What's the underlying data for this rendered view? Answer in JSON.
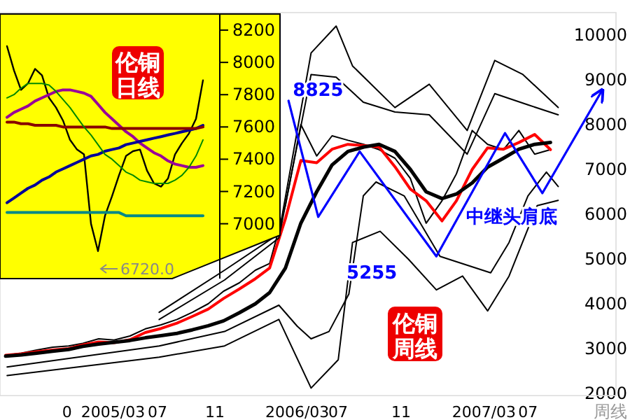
{
  "chart_data": [
    {
      "type": "line",
      "xlabel": "周线",
      "xlim": [
        "2004-09-20",
        "2008-01-07"
      ],
      "ylim": [
        1950,
        10500
      ],
      "yticks": [
        2000,
        3000,
        4000,
        5000,
        6000,
        7000,
        8000,
        9000,
        10000
      ],
      "xticks": [
        {
          "value": "2005-01-29",
          "label": "0"
        },
        {
          "value": "2005-04-29",
          "label": "2005/03"
        },
        {
          "value": "2005-07-25",
          "label": "07"
        },
        {
          "value": "2005-11-14",
          "label": "11"
        },
        {
          "value": "2006-04-24",
          "label": "2006/03"
        },
        {
          "value": "2006-07-13",
          "label": "07"
        },
        {
          "value": "2006-11-13",
          "label": "11"
        },
        {
          "value": "2007-04-24",
          "label": "2007/03"
        },
        {
          "value": "2007-07-19",
          "label": "07"
        }
      ],
      "series": [
        {
          "color": "#000000",
          "x": [
            "2004-10-01",
            "2004-11-01",
            "2004-12-01",
            "2005-01-01",
            "2005-02-01",
            "2005-03-01",
            "2005-04-01",
            "2005-05-01",
            "2005-06-01",
            "2005-07-01",
            "2005-08-01",
            "2005-09-01",
            "2005-10-01",
            "2005-11-01",
            "2005-12-01",
            "2006-01-01",
            "2006-02-01",
            "2006-03-01",
            "2006-04-01",
            "2006-05-01",
            "2006-06-01",
            "2006-07-01",
            "2006-08-01",
            "2006-09-01",
            "2006-10-01",
            "2006-11-01",
            "2006-12-01",
            "2007-01-01",
            "2007-02-01",
            "2007-03-01",
            "2007-04-01",
            "2007-05-01",
            "2007-06-01",
            "2007-07-01",
            "2007-08-01",
            "2007-09-01"
          ],
          "values": [
            2850,
            2900,
            2970,
            3030,
            3060,
            3120,
            3220,
            3190,
            3280,
            3440,
            3530,
            3650,
            3810,
            4000,
            4280,
            4470,
            4750,
            4900,
            6200,
            8000,
            7300,
            7750,
            7650,
            7560,
            7440,
            7250,
            6800,
            5800,
            6300,
            6900,
            7870,
            7560,
            7440,
            7870,
            7340,
            7440
          ]
        },
        {
          "color": "#ff0000",
          "x": [
            "2004-10-01",
            "2004-11-01",
            "2004-12-01",
            "2005-01-01",
            "2005-02-01",
            "2005-03-01",
            "2005-04-01",
            "2005-05-01",
            "2005-06-01",
            "2005-07-01",
            "2005-08-01",
            "2005-09-01",
            "2005-10-01",
            "2005-11-01",
            "2005-12-01",
            "2006-01-01",
            "2006-02-01",
            "2006-03-01",
            "2006-04-01",
            "2006-05-01",
            "2006-06-01",
            "2006-07-01",
            "2006-08-01",
            "2006-09-01",
            "2006-10-01",
            "2006-11-01",
            "2006-12-01",
            "2007-01-01",
            "2007-02-01",
            "2007-03-01",
            "2007-04-01",
            "2007-05-01",
            "2007-06-01",
            "2007-07-01",
            "2007-08-01",
            "2007-09-01"
          ],
          "values": [
            2850,
            2880,
            2930,
            2970,
            3000,
            3080,
            3150,
            3130,
            3200,
            3360,
            3450,
            3570,
            3720,
            3880,
            4120,
            4330,
            4560,
            4800,
            5900,
            7200,
            7150,
            7450,
            7560,
            7530,
            7500,
            7060,
            6560,
            6300,
            5850,
            6300,
            7000,
            7480,
            7450,
            7600,
            7780,
            7440
          ]
        },
        {
          "color": "#000000",
          "x": [
            "2004-10-01",
            "2004-11-01",
            "2004-12-01",
            "2005-01-01",
            "2005-02-01",
            "2005-03-01",
            "2005-04-01",
            "2005-05-01",
            "2005-06-01",
            "2005-07-01",
            "2005-08-01",
            "2005-09-01",
            "2005-10-01",
            "2005-11-01",
            "2005-12-01",
            "2006-01-01",
            "2006-02-01",
            "2006-03-01",
            "2006-04-01",
            "2006-05-01",
            "2006-06-01",
            "2006-07-01",
            "2006-08-01",
            "2006-09-01",
            "2006-10-01",
            "2006-11-01",
            "2006-12-01",
            "2007-01-01",
            "2007-02-01",
            "2007-03-01",
            "2007-04-01",
            "2007-05-01",
            "2007-06-01",
            "2007-07-01",
            "2007-08-01",
            "2007-09-01"
          ],
          "values": [
            2830,
            2860,
            2900,
            2940,
            2980,
            3050,
            3100,
            3140,
            3180,
            3240,
            3290,
            3340,
            3420,
            3510,
            3620,
            3800,
            4000,
            4250,
            4800,
            5800,
            6500,
            7100,
            7400,
            7500,
            7560,
            7400,
            7000,
            6500,
            6350,
            6450,
            6700,
            7050,
            7250,
            7450,
            7560,
            7600
          ]
        },
        {
          "color": "#000000",
          "x": [
            "2005-07-28",
            "2005-12-03",
            "2006-03-19",
            "2006-05-21",
            "2006-07-09",
            "2006-08-10",
            "2006-11-01",
            "2007-01-07",
            "2007-03-22",
            "2007-05-15",
            "2007-07-09",
            "2007-09-16"
          ],
          "values": [
            3810,
            4750,
            5560,
            9600,
            10200,
            9310,
            8380,
            8900,
            7870,
            9430,
            9120,
            8380
          ]
        },
        {
          "color": "#000000",
          "x": [
            "2005-07-28",
            "2005-12-03",
            "2006-03-19",
            "2006-05-21",
            "2006-07-09",
            "2006-08-31",
            "2006-11-01",
            "2007-01-07",
            "2007-03-22",
            "2007-05-15",
            "2007-07-19",
            "2007-09-16"
          ],
          "values": [
            3650,
            4530,
            5470,
            9120,
            9060,
            8500,
            8280,
            8220,
            7340,
            8690,
            8440,
            8220
          ]
        },
        {
          "color": "#000000",
          "x": [
            "2004-10-04",
            "2005-07-28",
            "2005-12-03",
            "2006-03-19",
            "2006-04-24",
            "2006-05-21",
            "2006-06-25",
            "2006-08-03",
            "2006-08-31",
            "2006-09-25",
            "2006-11-19",
            "2007-01-28",
            "2007-05-07",
            "2007-06-12",
            "2007-07-19",
            "2007-08-24",
            "2007-09-16"
          ],
          "values": [
            2590,
            3060,
            3380,
            3970,
            3500,
            3220,
            3380,
            4220,
            6410,
            6720,
            6410,
            5060,
            4690,
            5370,
            6410,
            6940,
            6620
          ]
        },
        {
          "color": "#000000",
          "x": [
            "2004-10-04",
            "2005-07-28",
            "2005-12-03",
            "2006-03-19",
            "2006-05-21",
            "2006-07-13",
            "2006-08-10",
            "2006-10-03",
            "2006-11-27",
            "2007-01-21",
            "2007-03-13",
            "2007-05-01",
            "2007-06-12",
            "2007-08-06",
            "2007-09-16"
          ],
          "values": [
            2400,
            2810,
            3060,
            3650,
            2120,
            2750,
            5370,
            5620,
            5000,
            4310,
            4620,
            3840,
            4620,
            6190,
            6310
          ]
        },
        {
          "color": "#0000ff",
          "x": [
            "2006-04-07",
            "2006-06-04",
            "2006-08-24",
            "2007-01-21",
            "2007-06-04",
            "2007-08-16",
            "2007-12-10"
          ],
          "values": [
            8530,
            5940,
            7400,
            5060,
            7810,
            6470,
            8750
          ]
        }
      ],
      "annotations": [
        {
          "text": "8825",
          "x": "2006-05-10",
          "y": 8825
        },
        {
          "text": "5255",
          "x": "2007-01-21",
          "y": 5255
        },
        "中继头肩底",
        "伦铜周线"
      ]
    },
    {
      "type": "line",
      "tick_labels": "y",
      "ylim": [
        6660,
        8300
      ],
      "yticks": [
        7000,
        7200,
        7400,
        7600,
        7800,
        8000,
        8200
      ],
      "categories": [
        null,
        null,
        null,
        null,
        null,
        null,
        null,
        null,
        null,
        null,
        null,
        null,
        null,
        null,
        null,
        null,
        null,
        null,
        null,
        null,
        null,
        null,
        null,
        null,
        null,
        null,
        null,
        null,
        null
      ],
      "series": [
        {
          "color": "#000000",
          "values": [
            8100,
            7950,
            7830,
            7870,
            7960,
            7920,
            7780,
            7720,
            7640,
            7520,
            7460,
            7430,
            7000,
            6830,
            7050,
            7170,
            7300,
            7420,
            7450,
            7460,
            7330,
            7250,
            7230,
            7280,
            7430,
            7500,
            7560,
            7650,
            7890
          ]
        },
        {
          "color": "#990099",
          "values": [
            7660,
            7690,
            7710,
            7730,
            7760,
            7780,
            7800,
            7820,
            7830,
            7830,
            7820,
            7810,
            7790,
            7740,
            7690,
            7650,
            7610,
            7570,
            7540,
            7500,
            7470,
            7440,
            7420,
            7390,
            7370,
            7360,
            7350,
            7350,
            7360
          ]
        },
        {
          "color": "#000099",
          "values": [
            7130,
            7160,
            7190,
            7220,
            7240,
            7270,
            7290,
            7320,
            7340,
            7360,
            7380,
            7400,
            7420,
            7430,
            7450,
            7460,
            7470,
            7490,
            7500,
            7510,
            7520,
            7530,
            7540,
            7550,
            7560,
            7570,
            7580,
            7590,
            7610
          ]
        },
        {
          "color": "#880000",
          "values": [
            7630,
            7630,
            7620,
            7620,
            7610,
            7610,
            7610,
            7610,
            7600,
            7600,
            7600,
            7600,
            7600,
            7600,
            7600,
            7590,
            7590,
            7590,
            7590,
            7590,
            7590,
            7590,
            7590,
            7590,
            7590,
            7590,
            7590,
            7590,
            7600
          ]
        },
        {
          "color": "#008888",
          "values": [
            7070,
            7070,
            7070,
            7070,
            7070,
            7070,
            7070,
            7070,
            7070,
            7070,
            7070,
            7070,
            7070,
            7070,
            7070,
            7070,
            7070,
            7050,
            7050,
            7050,
            7050,
            7050,
            7050,
            7050,
            7050,
            7050,
            7050,
            7050,
            7050
          ]
        },
        {
          "color": "#008800",
          "values": [
            7780,
            7800,
            7840,
            7870,
            7870,
            7870,
            7860,
            7820,
            7770,
            7720,
            7660,
            7600,
            7550,
            7490,
            7430,
            7400,
            7360,
            7320,
            7300,
            7270,
            7260,
            7250,
            7250,
            7250,
            7270,
            7300,
            7350,
            7420,
            7520
          ]
        }
      ],
      "annotations": [
        "伦铜日线",
        "6720.0"
      ]
    }
  ]
}
